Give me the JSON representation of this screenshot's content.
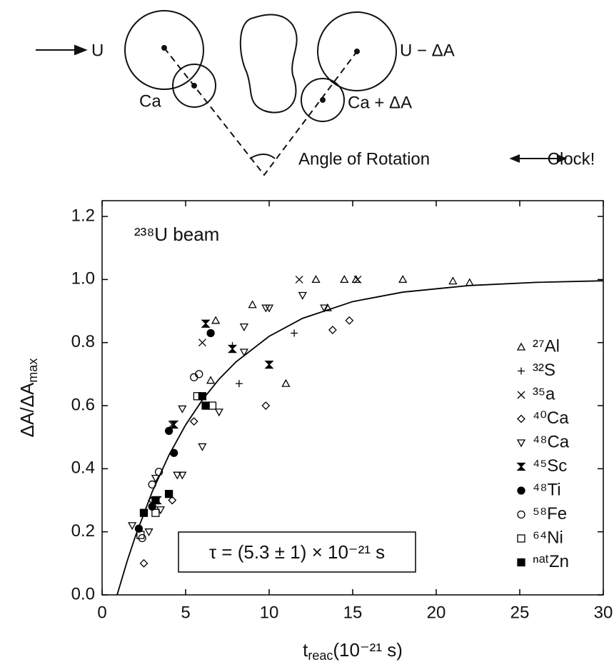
{
  "diagram": {
    "projectile": "U",
    "target": "Ca",
    "projectile_out": "U − ΔA",
    "target_out": "Ca + ΔA",
    "angle": "Angle of Rotation",
    "clock": "Clock!"
  },
  "chart_data": {
    "type": "scatter",
    "title": "²³⁸U beam",
    "x_label": {
      "base": "t",
      "subscript": "reac",
      "unit": "(10⁻²¹ s)"
    },
    "y_label": {
      "base": "ΔA/ΔA",
      "subscript": "max"
    },
    "annotation": "τ = (5.3 ± 1) × 10⁻²¹ s",
    "xlim": [
      0,
      30
    ],
    "ylim": [
      0,
      1.25
    ],
    "xticks": [
      0,
      5,
      10,
      15,
      20,
      25,
      30
    ],
    "yticks": [
      {
        "value": 0,
        "label": "0.0"
      },
      {
        "value": 0.2,
        "label": "0.2"
      },
      {
        "value": 0.4,
        "label": "0.4"
      },
      {
        "value": 0.6,
        "label": "0.6"
      },
      {
        "value": 0.8,
        "label": "0.8"
      },
      {
        "value": 1,
        "label": "1.0"
      },
      {
        "value": 1.2,
        "label": "1.2"
      }
    ],
    "legend": "right",
    "color": "#000",
    "fit_curve": {
      "x": [
        0.9,
        1.5,
        2,
        3,
        4,
        5,
        6,
        7,
        8,
        10,
        12,
        15,
        18,
        22,
        26,
        30
      ],
      "values": [
        0,
        0.107,
        0.187,
        0.327,
        0.443,
        0.539,
        0.618,
        0.684,
        0.738,
        0.82,
        0.877,
        0.93,
        0.96,
        0.981,
        0.991,
        0.996
      ]
    },
    "series": [
      {
        "name": "²⁷Al",
        "marker": "triangle-up",
        "x": [
          12.8,
          14.5,
          15.2,
          18,
          21,
          22,
          9,
          13.5,
          6.8,
          11,
          6.5
        ],
        "values": [
          1,
          1,
          1,
          1,
          0.995,
          0.99,
          0.92,
          0.91,
          0.87,
          0.67,
          0.68
        ]
      },
      {
        "name": "³²S",
        "marker": "plus",
        "x": [
          11.5,
          8.2,
          7.8
        ],
        "values": [
          0.83,
          0.67,
          0.79
        ]
      },
      {
        "name": "³⁵a",
        "marker": "x",
        "x": [
          11.8,
          15.3,
          6,
          4.2
        ],
        "values": [
          1,
          1,
          0.8,
          0.54
        ]
      },
      {
        "name": "⁴⁰Ca",
        "marker": "diamond",
        "x": [
          13.8,
          14.8,
          9.8,
          2.5,
          5.5,
          3,
          4.2
        ],
        "values": [
          0.84,
          0.87,
          0.6,
          0.1,
          0.55,
          0.3,
          0.3
        ]
      },
      {
        "name": "⁴⁸Ca",
        "marker": "triangle-down",
        "x": [
          12,
          9.8,
          10,
          8.5,
          13.3,
          8.5,
          7,
          6,
          4.8,
          4.5,
          4.8,
          3.5,
          2.8,
          1.8,
          3.2
        ],
        "values": [
          0.95,
          0.91,
          0.91,
          0.85,
          0.91,
          0.77,
          0.58,
          0.47,
          0.59,
          0.38,
          0.38,
          0.27,
          0.2,
          0.22,
          0.37
        ]
      },
      {
        "name": "⁴⁵Sc",
        "marker": "hourglass",
        "x": [
          6.2,
          10,
          7.8,
          4.3,
          3.3
        ],
        "values": [
          0.86,
          0.73,
          0.78,
          0.54,
          0.3
        ]
      },
      {
        "name": "⁴⁸Ti",
        "marker": "filled-circle",
        "x": [
          6.5,
          4,
          4.3,
          6.2,
          2.2,
          3
        ],
        "values": [
          0.83,
          0.52,
          0.45,
          0.6,
          0.21,
          0.28
        ]
      },
      {
        "name": "⁵⁸Fe",
        "marker": "circle",
        "x": [
          5.8,
          5.5,
          3.4,
          3,
          2.4
        ],
        "values": [
          0.7,
          0.69,
          0.39,
          0.35,
          0.18
        ]
      },
      {
        "name": "⁶⁴Ni",
        "marker": "square",
        "x": [
          5.7,
          6.6,
          2.3,
          3.2
        ],
        "values": [
          0.63,
          0.6,
          0.19,
          0.26
        ]
      },
      {
        "name": "ⁿᵃᵗZn",
        "marker": "filled-square",
        "x": [
          6,
          4,
          2.5,
          3.2,
          6.2
        ],
        "values": [
          0.63,
          0.32,
          0.26,
          0.3,
          0.6
        ]
      }
    ]
  }
}
